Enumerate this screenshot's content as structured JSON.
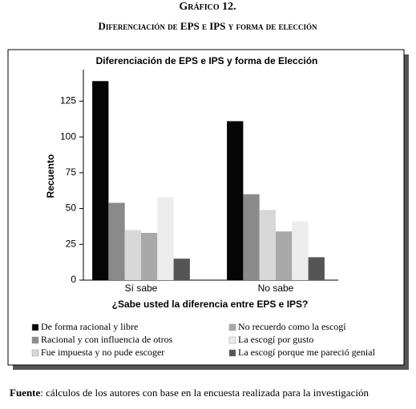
{
  "header": {
    "label": "Gráfico 12.",
    "subtitle": "Diferenciación de EPS e IPS y forma de elección"
  },
  "chart_data": {
    "type": "bar",
    "title": "Diferenciación de EPS e IPS y forma de Elección",
    "x_label": "¿Sabe usted la diferencia entre EPS e IPS?",
    "y_label": "Recuento",
    "categories": [
      "Sí sabe",
      "No sabe"
    ],
    "series": [
      {
        "name": "De forma racional y libre",
        "color": "#050505",
        "values": [
          139,
          111
        ]
      },
      {
        "name": "Racional y con influencia de otros",
        "color": "#8a8a8a",
        "values": [
          54,
          60
        ]
      },
      {
        "name": "Fue impuesta y no pude escoger",
        "color": "#d8d8d8",
        "values": [
          35,
          49
        ]
      },
      {
        "name": "No recuerdo como la escogí",
        "color": "#a9a9a9",
        "values": [
          33,
          34
        ]
      },
      {
        "name": "La escogí por gusto",
        "color": "#ececec",
        "values": [
          58,
          41
        ]
      },
      {
        "name": "La escogí porque me pareció genial",
        "color": "#555555",
        "values": [
          15,
          16
        ]
      }
    ],
    "ylim": [
      0,
      147
    ],
    "yticks": [
      0,
      25,
      50,
      75,
      100,
      125
    ],
    "grid": false
  },
  "footer": {
    "label": "Fuente",
    "text": ": cálculos de los autores con base en la encuesta realizada para la investigación"
  }
}
